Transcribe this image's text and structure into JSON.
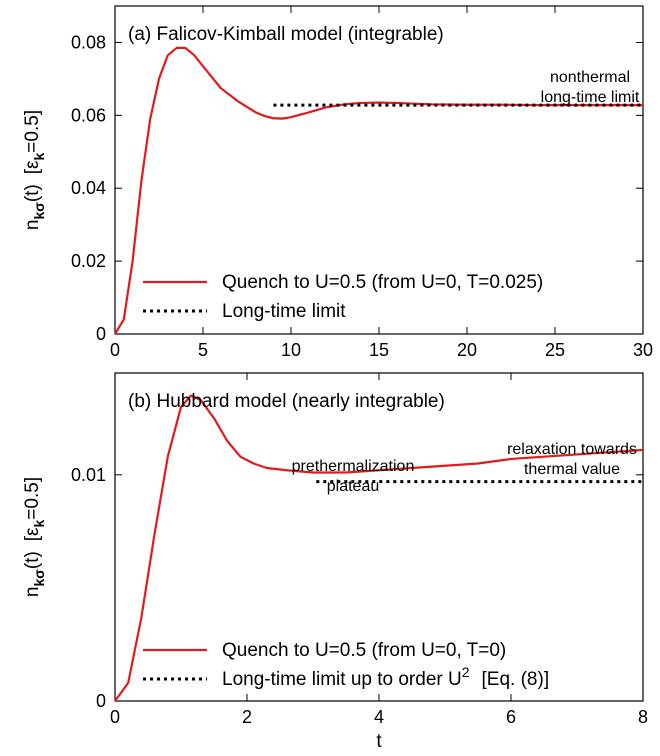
{
  "chart_data": [
    {
      "type": "line",
      "panel_title": "(a) Falicov-Kimball model (integrable)",
      "xlabel": "",
      "ylabel_main": "n",
      "ylabel_sub": "kσ",
      "ylabel_arg": "(t)",
      "ylabel_cond_open": "[ε",
      "ylabel_cond_sub": "k",
      "ylabel_cond_rest": "=0.5]",
      "xlim": [
        0,
        30
      ],
      "ylim": [
        0,
        0.09
      ],
      "x_ticks": [
        "0",
        "5",
        "10",
        "15",
        "20",
        "25",
        "30"
      ],
      "y_ticks": [
        "0",
        "0.02",
        "0.04",
        "0.06",
        "0.08"
      ],
      "y_tick_values": [
        0,
        0.02,
        0.04,
        0.06,
        0.08
      ],
      "x_tick_values": [
        0,
        5,
        10,
        15,
        20,
        25,
        30
      ],
      "series": [
        {
          "name": "Quench to U=0.5 (from U=0, T=0.025)",
          "style": "solid",
          "color": "#e31a1c",
          "x": [
            0,
            0.5,
            1,
            1.5,
            2,
            2.5,
            3,
            3.5,
            4,
            4.5,
            5,
            5.5,
            6,
            7,
            8,
            8.5,
            9,
            9.5,
            10,
            11,
            12,
            13,
            14,
            15,
            16,
            17,
            18,
            20,
            22,
            24,
            26,
            28,
            30
          ],
          "y": [
            0,
            0.004,
            0.02,
            0.042,
            0.059,
            0.07,
            0.0765,
            0.0785,
            0.0785,
            0.0765,
            0.0735,
            0.0705,
            0.0675,
            0.0638,
            0.0608,
            0.0598,
            0.0592,
            0.0591,
            0.0595,
            0.0608,
            0.0622,
            0.063,
            0.0634,
            0.0635,
            0.0634,
            0.0632,
            0.063,
            0.0629,
            0.0629,
            0.0628,
            0.0628,
            0.0628,
            0.0628
          ]
        },
        {
          "name": "Long-time limit",
          "style": "dotted",
          "color": "#000000",
          "x": [
            9,
            30
          ],
          "y": [
            0.0628,
            0.0628
          ]
        }
      ],
      "annotations": [
        "nonthermal",
        "long-time limit"
      ]
    },
    {
      "type": "line",
      "panel_title": "(b) Hubbard model (nearly integrable)",
      "xlabel": "t",
      "ylabel_main": "n",
      "ylabel_sub": "kσ",
      "ylabel_arg": "(t)",
      "ylabel_cond_open": "[ε",
      "ylabel_cond_sub": "k",
      "ylabel_cond_rest": "=0.5]",
      "xlim": [
        0,
        8
      ],
      "ylim": [
        0,
        0.0145
      ],
      "x_ticks": [
        "0",
        "2",
        "4",
        "6",
        "8"
      ],
      "y_ticks": [
        "0",
        "0.01"
      ],
      "y_tick_values": [
        0,
        0.01
      ],
      "x_tick_values": [
        0,
        2,
        4,
        6,
        8
      ],
      "series": [
        {
          "name": "Quench to U=0.5 (from U=0, T=0)",
          "style": "solid",
          "color": "#e31a1c",
          "x": [
            0,
            0.2,
            0.4,
            0.6,
            0.8,
            1.0,
            1.15,
            1.3,
            1.5,
            1.7,
            1.9,
            2.1,
            2.3,
            2.6,
            3.0,
            3.5,
            4.0,
            4.5,
            5.0,
            5.5,
            6.0,
            6.5,
            7.0,
            7.5,
            8.0
          ],
          "y": [
            0,
            0.0008,
            0.0037,
            0.0074,
            0.0108,
            0.013,
            0.0135,
            0.0133,
            0.0125,
            0.0115,
            0.0108,
            0.0105,
            0.0103,
            0.0102,
            0.0101,
            0.0101,
            0.0102,
            0.0103,
            0.0104,
            0.0105,
            0.0107,
            0.0108,
            0.0109,
            0.011,
            0.0111
          ]
        },
        {
          "name": "Long-time limit up to order U",
          "name_sup": "2",
          "name_tail": "[Eq. (8)]",
          "style": "dotted",
          "color": "#000000",
          "x": [
            3.05,
            8
          ],
          "y": [
            0.0097,
            0.0097
          ]
        }
      ],
      "annotations": [
        "prethermalization",
        "plateau",
        "relaxation towards",
        "thermal value"
      ]
    }
  ]
}
